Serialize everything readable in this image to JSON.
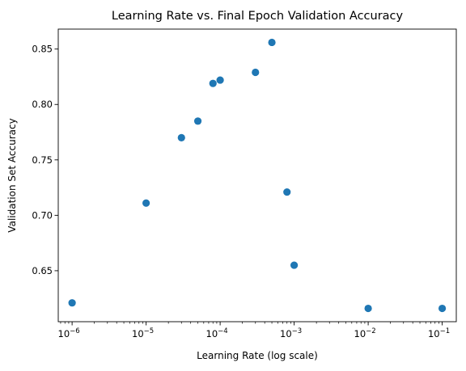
{
  "chart_data": {
    "type": "scatter",
    "title": "Learning Rate vs. Final Epoch Validation Accuracy",
    "xlabel": "Learning Rate (log scale)",
    "ylabel": "Validation Set Accuracy",
    "xscale": "log",
    "xlim": [
      6.5e-07,
      0.155
    ],
    "ylim": [
      0.604,
      0.868
    ],
    "grid": false,
    "marker_color": "#1f77b4",
    "x_ticks": [
      {
        "value": 1e-06,
        "base": "10",
        "exp": "−6"
      },
      {
        "value": 1e-05,
        "base": "10",
        "exp": "−5"
      },
      {
        "value": 0.0001,
        "base": "10",
        "exp": "−4"
      },
      {
        "value": 0.001,
        "base": "10",
        "exp": "−3"
      },
      {
        "value": 0.01,
        "base": "10",
        "exp": "−2"
      },
      {
        "value": 0.1,
        "base": "10",
        "exp": "−1"
      }
    ],
    "y_ticks": [
      {
        "value": 0.65,
        "label": "0.65"
      },
      {
        "value": 0.7,
        "label": "0.70"
      },
      {
        "value": 0.75,
        "label": "0.75"
      },
      {
        "value": 0.8,
        "label": "0.80"
      },
      {
        "value": 0.85,
        "label": "0.85"
      }
    ],
    "points": [
      {
        "x": 1e-06,
        "y": 0.621
      },
      {
        "x": 1e-05,
        "y": 0.711
      },
      {
        "x": 3e-05,
        "y": 0.77
      },
      {
        "x": 5e-05,
        "y": 0.785
      },
      {
        "x": 8e-05,
        "y": 0.819
      },
      {
        "x": 0.0001,
        "y": 0.822
      },
      {
        "x": 0.0003,
        "y": 0.829
      },
      {
        "x": 0.0005,
        "y": 0.856
      },
      {
        "x": 0.0008,
        "y": 0.721
      },
      {
        "x": 0.001,
        "y": 0.655
      },
      {
        "x": 0.01,
        "y": 0.616
      },
      {
        "x": 0.1,
        "y": 0.616
      }
    ]
  }
}
